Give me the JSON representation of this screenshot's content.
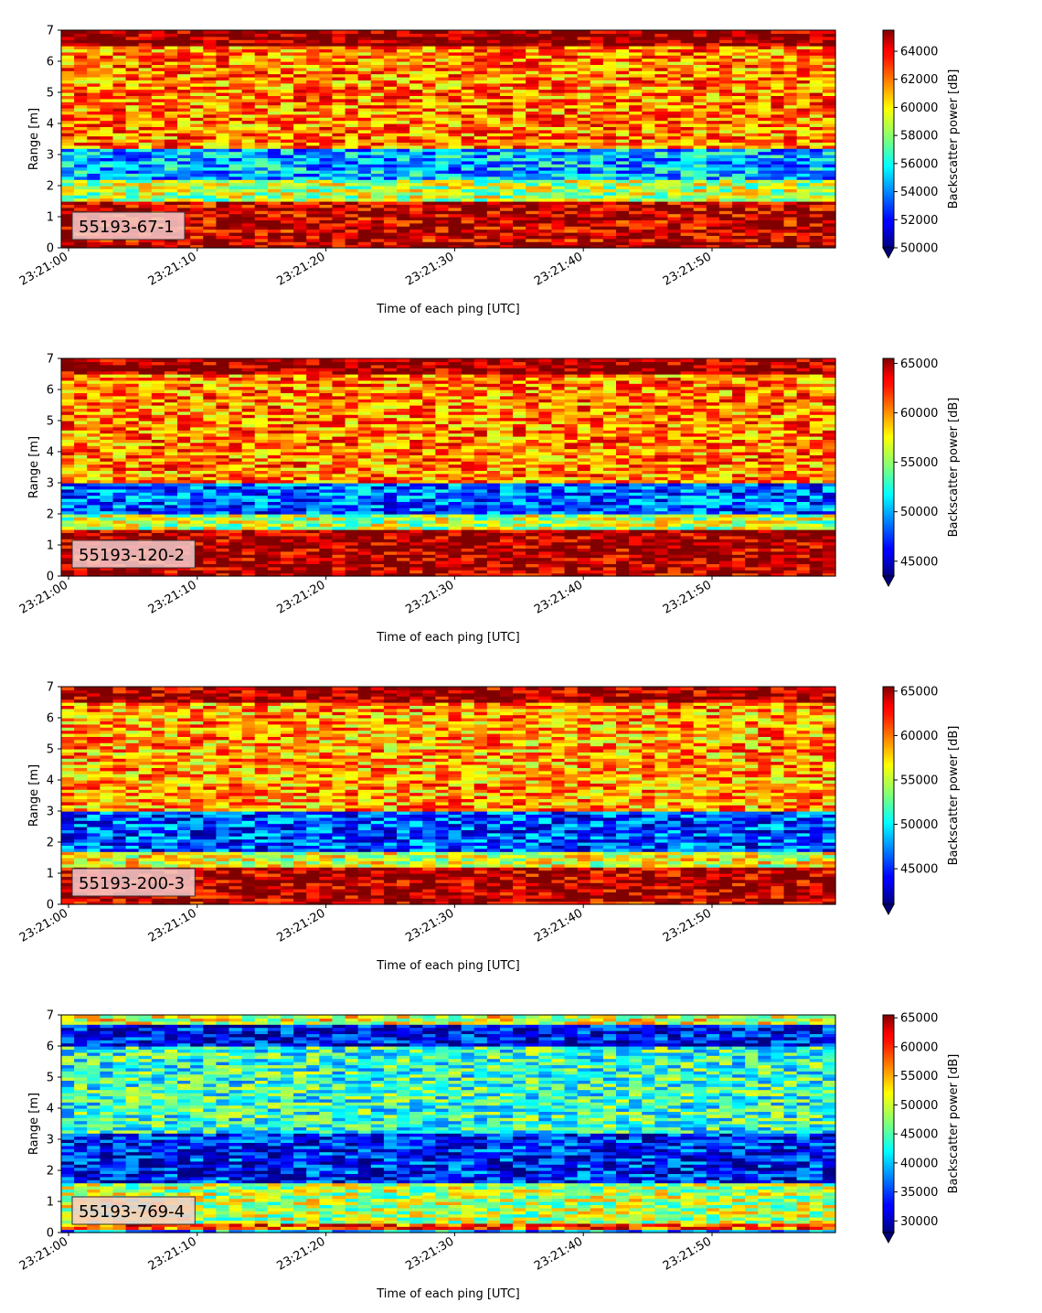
{
  "chart_data": [
    {
      "type": "heatmap",
      "label": "55193-67-1",
      "ylabel": "Range [m]",
      "xlabel": "Time of each ping [UTC]",
      "ylim": [
        0,
        7
      ],
      "yticks": [
        "0",
        "1",
        "2",
        "3",
        "4",
        "5",
        "6",
        "7"
      ],
      "xticks": [
        "23:21:00",
        "23:21:10",
        "23:21:20",
        "23:21:30",
        "23:21:40",
        "23:21:50"
      ],
      "colorbar": {
        "label": "Backscatter power [dB]",
        "colormap": "jet",
        "range": [
          50000,
          65500
        ],
        "ticks": [
          "50000",
          "52000",
          "54000",
          "56000",
          "58000",
          "60000",
          "62000",
          "64000"
        ],
        "extend": "min"
      },
      "bands": [
        {
          "range": [
            0.0,
            0.2
          ],
          "level": 0.98
        },
        {
          "range": [
            0.2,
            1.5
          ],
          "level": 0.93
        },
        {
          "range": [
            1.5,
            2.2
          ],
          "level": 0.55
        },
        {
          "range": [
            2.2,
            3.2
          ],
          "level": 0.3
        },
        {
          "range": [
            3.2,
            6.5
          ],
          "level": 0.75
        },
        {
          "range": [
            6.5,
            7.0
          ],
          "level": 1.0
        }
      ]
    },
    {
      "type": "heatmap",
      "label": "55193-120-2",
      "ylabel": "Range [m]",
      "xlabel": "Time of each ping [UTC]",
      "ylim": [
        0,
        7
      ],
      "yticks": [
        "0",
        "1",
        "2",
        "3",
        "4",
        "5",
        "6",
        "7"
      ],
      "xticks": [
        "23:21:00",
        "23:21:10",
        "23:21:20",
        "23:21:30",
        "23:21:40",
        "23:21:50"
      ],
      "colorbar": {
        "label": "Backscatter power [dB]",
        "colormap": "jet",
        "range": [
          43500,
          65500
        ],
        "ticks": [
          "45000",
          "50000",
          "55000",
          "60000",
          "65000"
        ],
        "extend": "min"
      },
      "bands": [
        {
          "range": [
            0.0,
            0.1
          ],
          "level": 0.95
        },
        {
          "range": [
            0.1,
            1.5
          ],
          "level": 0.97
        },
        {
          "range": [
            1.5,
            2.0
          ],
          "level": 0.55
        },
        {
          "range": [
            2.0,
            3.0
          ],
          "level": 0.22
        },
        {
          "range": [
            3.0,
            6.5
          ],
          "level": 0.75
        },
        {
          "range": [
            6.5,
            7.0
          ],
          "level": 0.98
        }
      ]
    },
    {
      "type": "heatmap",
      "label": "55193-200-3",
      "ylabel": "Range [m]",
      "xlabel": "Time of each ping [UTC]",
      "ylim": [
        0,
        7
      ],
      "yticks": [
        "0",
        "1",
        "2",
        "3",
        "4",
        "5",
        "6",
        "7"
      ],
      "xticks": [
        "23:21:00",
        "23:21:10",
        "23:21:20",
        "23:21:30",
        "23:21:40",
        "23:21:50"
      ],
      "colorbar": {
        "label": "Backscatter power [dB]",
        "colormap": "jet",
        "range": [
          41000,
          65500
        ],
        "ticks": [
          "45000",
          "50000",
          "55000",
          "60000",
          "65000"
        ],
        "extend": "min"
      },
      "bands": [
        {
          "range": [
            0.0,
            0.1
          ],
          "level": 0.9
        },
        {
          "range": [
            0.1,
            1.2
          ],
          "level": 0.96
        },
        {
          "range": [
            1.2,
            1.7
          ],
          "level": 0.6
        },
        {
          "range": [
            1.7,
            3.0
          ],
          "level": 0.2
        },
        {
          "range": [
            3.0,
            6.5
          ],
          "level": 0.72
        },
        {
          "range": [
            6.5,
            7.0
          ],
          "level": 0.97
        }
      ]
    },
    {
      "type": "heatmap",
      "label": "55193-769-4",
      "ylabel": "Range [m]",
      "xlabel": "Time of each ping [UTC]",
      "ylim": [
        0,
        7
      ],
      "yticks": [
        "0",
        "1",
        "2",
        "3",
        "4",
        "5",
        "6",
        "7"
      ],
      "xticks": [
        "23:21:00",
        "23:21:10",
        "23:21:20",
        "23:21:30",
        "23:21:40",
        "23:21:50"
      ],
      "colorbar": {
        "label": "Backscatter power [dB]",
        "colormap": "jet",
        "range": [
          28000,
          65500
        ],
        "ticks": [
          "30000",
          "35000",
          "40000",
          "45000",
          "50000",
          "55000",
          "60000",
          "65000"
        ],
        "extend": "min"
      },
      "bands": [
        {
          "range": [
            0.0,
            0.1
          ],
          "level": 0.3
        },
        {
          "range": [
            0.1,
            0.3
          ],
          "level": 0.8
        },
        {
          "range": [
            0.3,
            1.6
          ],
          "level": 0.55
        },
        {
          "range": [
            1.6,
            3.2
          ],
          "level": 0.15
        },
        {
          "range": [
            3.2,
            6.0
          ],
          "level": 0.42
        },
        {
          "range": [
            6.0,
            6.7
          ],
          "level": 0.12
        },
        {
          "range": [
            6.7,
            7.0
          ],
          "level": 0.6
        }
      ]
    }
  ]
}
